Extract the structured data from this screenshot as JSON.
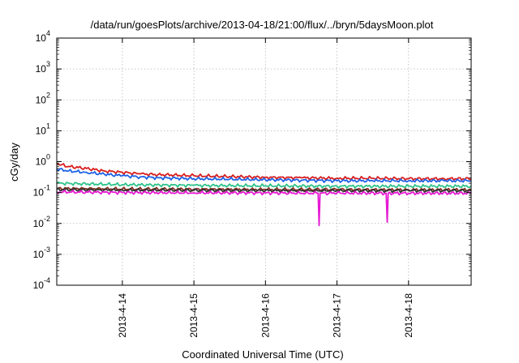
{
  "chart_data": {
    "type": "line",
    "title": "/data/run/goesPlots/archive/2013-04-18/21:00/flux/../bryn/5daysMoon.plot",
    "xlabel": "Coordinated Universal Time (UTC)",
    "ylabel": "cGy/day",
    "y_scale": "log",
    "ylim": [
      0.0001,
      10000
    ],
    "xlim": [
      "2013-04-13T02:00",
      "2013-04-18T21:00"
    ],
    "grid": true,
    "x_ticks": [
      {
        "date": "2013-04-14T00:00",
        "label": "2013-4-14"
      },
      {
        "date": "2013-04-15T00:00",
        "label": "2013-4-15"
      },
      {
        "date": "2013-04-16T00:00",
        "label": "2013-4-16"
      },
      {
        "date": "2013-04-17T00:00",
        "label": "2013-4-17"
      },
      {
        "date": "2013-04-18T00:00",
        "label": "2013-4-18"
      }
    ],
    "y_ticks": [
      {
        "value": 0.0001,
        "base": "10",
        "exp": "-4"
      },
      {
        "value": 0.001,
        "base": "10",
        "exp": "-3"
      },
      {
        "value": 0.01,
        "base": "10",
        "exp": "-2"
      },
      {
        "value": 0.1,
        "base": "10",
        "exp": "-1"
      },
      {
        "value": 1,
        "base": "10",
        "exp": "0"
      },
      {
        "value": 10,
        "base": "10",
        "exp": "1"
      },
      {
        "value": 100,
        "base": "10",
        "exp": "2"
      },
      {
        "value": 1000,
        "base": "10",
        "exp": "3"
      },
      {
        "value": 10000,
        "base": "10",
        "exp": "4"
      }
    ],
    "series": [
      {
        "color": "#d81e1e",
        "x": [
          "2013-04-13T02:00",
          "2013-04-13T06:00",
          "2013-04-13T12:00",
          "2013-04-13T18:00",
          "2013-04-14T00:00",
          "2013-04-14T06:00",
          "2013-04-14T12:00",
          "2013-04-15T00:00",
          "2013-04-15T12:00",
          "2013-04-16T00:00",
          "2013-04-16T12:00",
          "2013-04-17T00:00",
          "2013-04-17T12:00",
          "2013-04-18T00:00",
          "2013-04-18T12:00",
          "2013-04-18T21:00"
        ],
        "values": [
          0.85,
          0.7,
          0.6,
          0.5,
          0.45,
          0.4,
          0.38,
          0.35,
          0.33,
          0.31,
          0.3,
          0.29,
          0.29,
          0.28,
          0.28,
          0.28
        ]
      },
      {
        "color": "#1e62e6",
        "x": [
          "2013-04-13T02:00",
          "2013-04-13T06:00",
          "2013-04-13T12:00",
          "2013-04-13T18:00",
          "2013-04-14T00:00",
          "2013-04-14T06:00",
          "2013-04-14T12:00",
          "2013-04-15T00:00",
          "2013-04-15T12:00",
          "2013-04-16T00:00",
          "2013-04-16T12:00",
          "2013-04-17T00:00",
          "2013-04-17T12:00",
          "2013-04-18T00:00",
          "2013-04-18T12:00",
          "2013-04-18T21:00"
        ],
        "values": [
          0.58,
          0.5,
          0.45,
          0.39,
          0.35,
          0.32,
          0.3,
          0.28,
          0.27,
          0.26,
          0.25,
          0.24,
          0.24,
          0.24,
          0.24,
          0.24
        ]
      },
      {
        "color": "#2ec28a",
        "x": [
          "2013-04-13T02:00",
          "2013-04-14T00:00",
          "2013-04-15T00:00",
          "2013-04-16T00:00",
          "2013-04-17T00:00",
          "2013-04-18T00:00",
          "2013-04-18T21:00"
        ],
        "values": [
          0.2,
          0.18,
          0.17,
          0.165,
          0.16,
          0.16,
          0.16
        ]
      },
      {
        "color": "#8a2a1e",
        "x": [
          "2013-04-13T02:00",
          "2013-04-14T00:00",
          "2013-04-15T00:00",
          "2013-04-16T00:00",
          "2013-04-17T00:00",
          "2013-04-18T00:00",
          "2013-04-18T21:00"
        ],
        "values": [
          0.135,
          0.13,
          0.128,
          0.125,
          0.124,
          0.123,
          0.123
        ]
      },
      {
        "color": "#333333",
        "x": [
          "2013-04-13T02:00",
          "2013-04-14T00:00",
          "2013-04-15T00:00",
          "2013-04-16T00:00",
          "2013-04-17T00:00",
          "2013-04-18T00:00",
          "2013-04-18T21:00"
        ],
        "values": [
          0.125,
          0.12,
          0.118,
          0.116,
          0.115,
          0.115,
          0.115
        ]
      },
      {
        "color": "#e619d3",
        "x": [
          "2013-04-13T02:00",
          "2013-04-14T00:00",
          "2013-04-15T00:00",
          "2013-04-16T00:00",
          "2013-04-16T17:40",
          "2013-04-16T18:00",
          "2013-04-16T18:20",
          "2013-04-17T00:00",
          "2013-04-17T16:30",
          "2013-04-17T16:50",
          "2013-04-17T17:10",
          "2013-04-18T00:00",
          "2013-04-18T21:00"
        ],
        "values": [
          0.105,
          0.1,
          0.098,
          0.097,
          0.095,
          0.0085,
          0.095,
          0.096,
          0.095,
          0.011,
          0.095,
          0.095,
          0.095
        ]
      }
    ]
  }
}
